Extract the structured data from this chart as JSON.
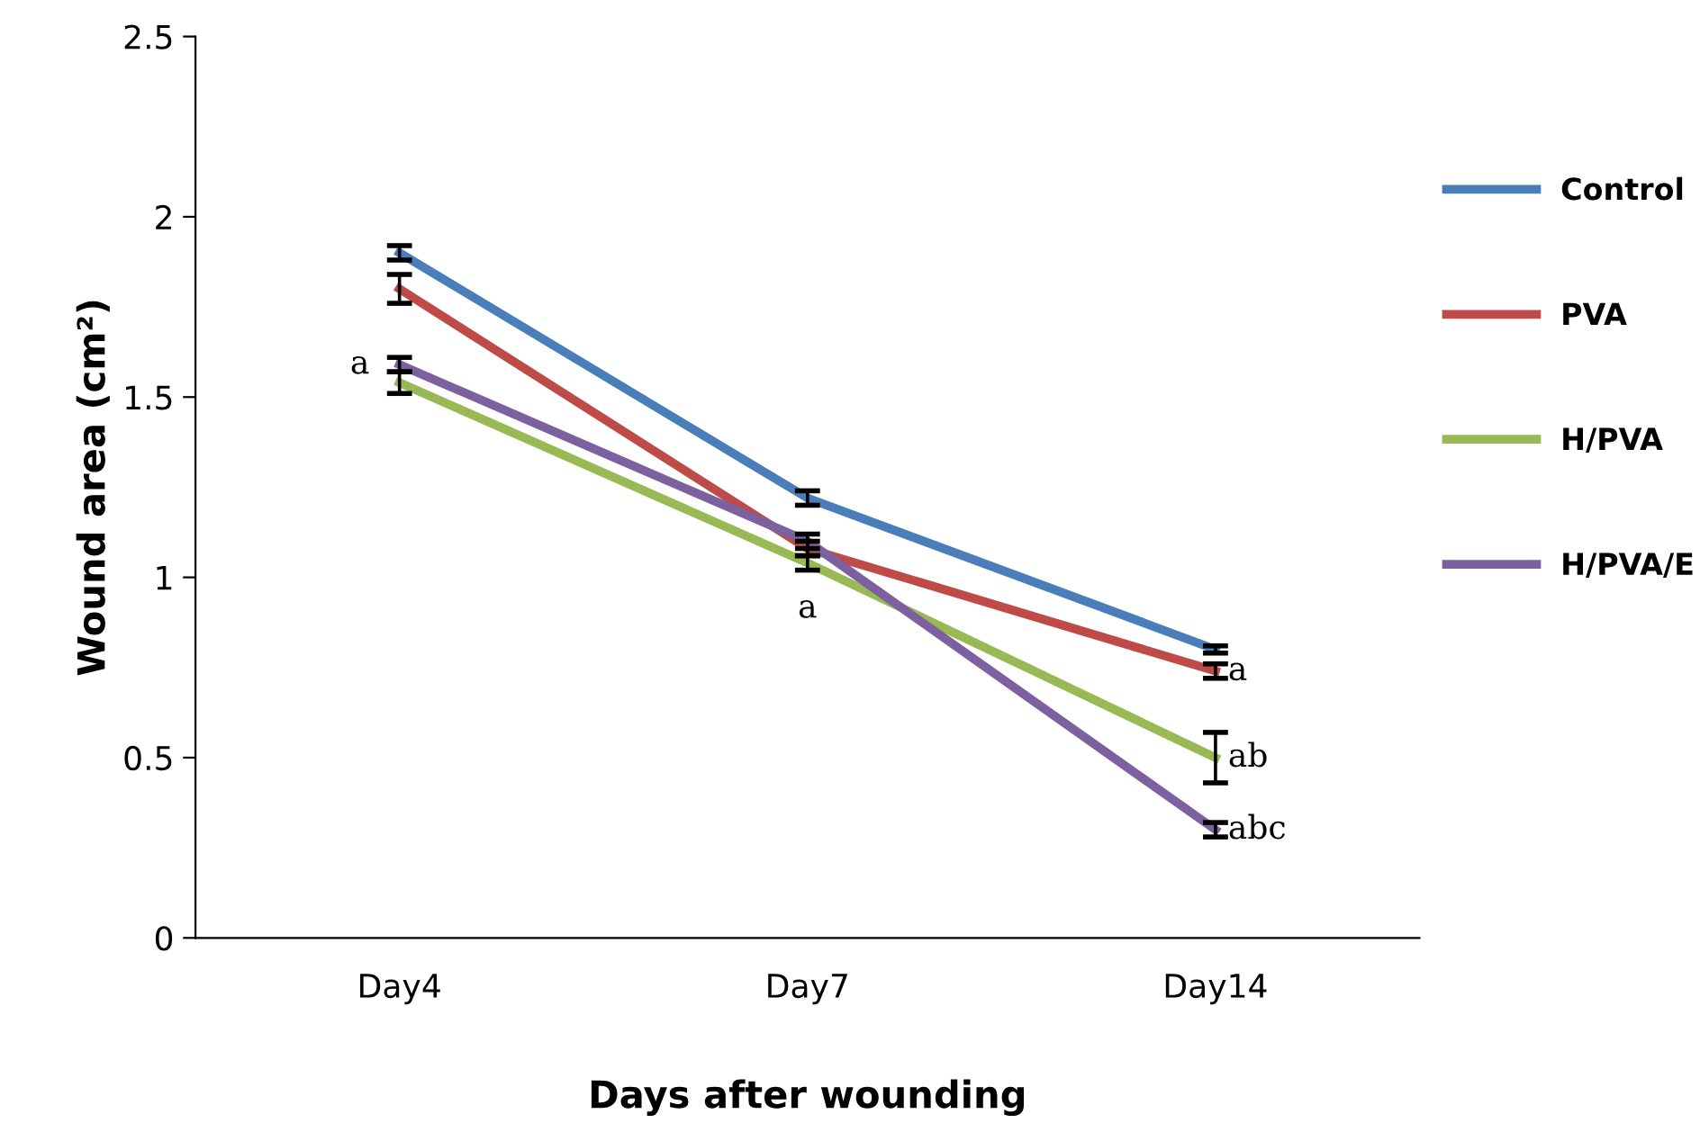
{
  "chart_data": {
    "type": "line",
    "xlabel": "Days after wounding",
    "ylabel": "Wound area (cm²)",
    "categories": [
      "Day4",
      "Day7",
      "Day14"
    ],
    "ylim": [
      0,
      2.5
    ],
    "yticks": [
      0,
      0.5,
      1,
      1.5,
      2,
      2.5
    ],
    "grid": false,
    "legend": "right",
    "marker": "none",
    "line_style": "solid",
    "series": [
      {
        "name": "Control",
        "color": "#4a7ebb",
        "values": [
          1.9,
          1.22,
          0.8
        ],
        "errors": [
          0.02,
          0.02,
          0.01
        ]
      },
      {
        "name": "PVA",
        "color": "#be4b48",
        "values": [
          1.8,
          1.08,
          0.74
        ],
        "errors": [
          0.04,
          0.02,
          0.02
        ]
      },
      {
        "name": "H/PVA",
        "color": "#98b954",
        "values": [
          1.54,
          1.04,
          0.5
        ],
        "errors": [
          0.03,
          0.02,
          0.07
        ]
      },
      {
        "name": "H/PVA/E",
        "color": "#7d60a0",
        "values": [
          1.59,
          1.1,
          0.3
        ],
        "errors": [
          0.02,
          0.02,
          0.02
        ]
      }
    ],
    "annotations": [
      {
        "text": "a",
        "x": "Day4",
        "y": 1.59
      },
      {
        "text": "a",
        "x": "Day7",
        "y": 1.04
      },
      {
        "text": "a",
        "x": "Day14",
        "y": 0.74
      },
      {
        "text": "ab",
        "x": "Day14",
        "y": 0.5
      },
      {
        "text": "abc",
        "x": "Day14",
        "y": 0.3
      }
    ]
  }
}
